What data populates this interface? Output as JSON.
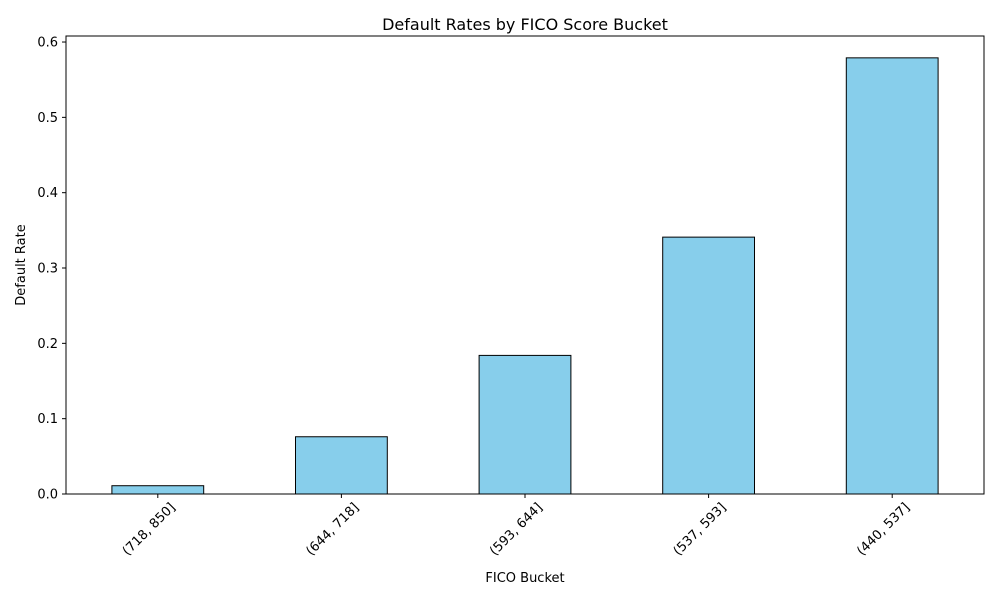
{
  "chart_data": {
    "type": "bar",
    "title": "Default Rates by FICO Score Bucket",
    "xlabel": "FICO Bucket",
    "ylabel": "Default Rate",
    "categories": [
      "(718, 850]",
      "(644, 718]",
      "(593, 644]",
      "(537, 593]",
      "(440, 537]"
    ],
    "values": [
      0.011,
      0.076,
      0.184,
      0.341,
      0.579
    ],
    "ylim": [
      0,
      0.608
    ],
    "yticks": [
      0.0,
      0.1,
      0.2,
      0.3,
      0.4,
      0.5,
      0.6
    ],
    "ytick_labels": [
      "0.0",
      "0.1",
      "0.2",
      "0.3",
      "0.4",
      "0.5",
      "0.6"
    ],
    "grid": false,
    "legend": "none",
    "bar_color": "#87CEEB",
    "edge_color": "#000000"
  }
}
